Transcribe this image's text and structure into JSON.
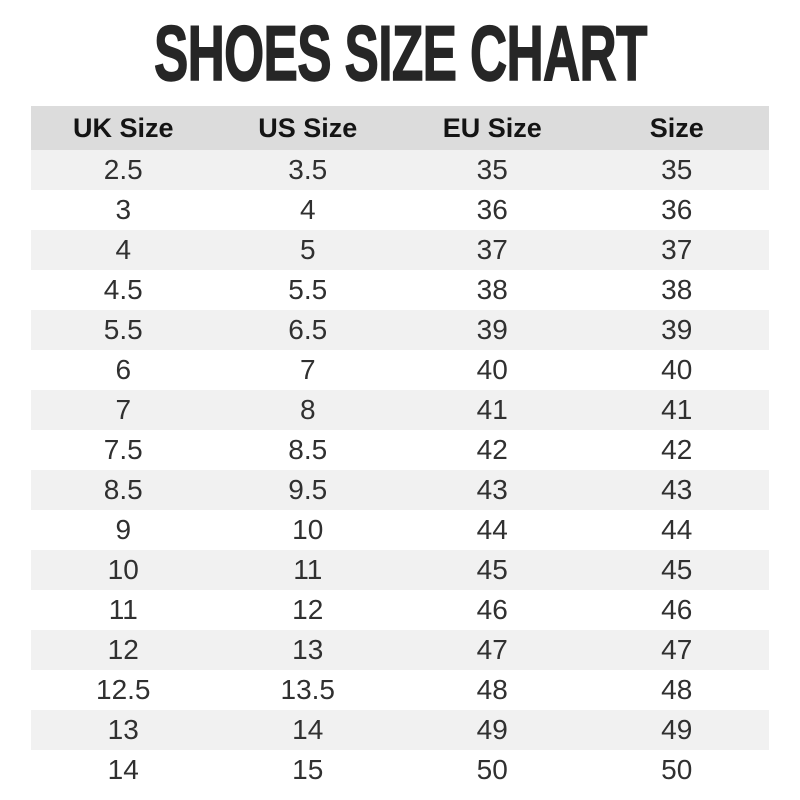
{
  "chart_data": {
    "type": "table",
    "title": "SHOES SIZE CHART",
    "columns": [
      "UK Size",
      "US Size",
      "EU Size",
      "Size"
    ],
    "rows": [
      [
        "2.5",
        "3.5",
        "35",
        "35"
      ],
      [
        "3",
        "4",
        "36",
        "36"
      ],
      [
        "4",
        "5",
        "37",
        "37"
      ],
      [
        "4.5",
        "5.5",
        "38",
        "38"
      ],
      [
        "5.5",
        "6.5",
        "39",
        "39"
      ],
      [
        "6",
        "7",
        "40",
        "40"
      ],
      [
        "7",
        "8",
        "41",
        "41"
      ],
      [
        "7.5",
        "8.5",
        "42",
        "42"
      ],
      [
        "8.5",
        "9.5",
        "43",
        "43"
      ],
      [
        "9",
        "10",
        "44",
        "44"
      ],
      [
        "10",
        "11",
        "45",
        "45"
      ],
      [
        "11",
        "12",
        "46",
        "46"
      ],
      [
        "12",
        "13",
        "47",
        "47"
      ],
      [
        "12.5",
        "13.5",
        "48",
        "48"
      ],
      [
        "13",
        "14",
        "49",
        "49"
      ],
      [
        "14",
        "15",
        "50",
        "50"
      ]
    ],
    "layout": {
      "striped_rows": true,
      "grid": false
    }
  },
  "colors": {
    "header_bg": "#dcdcdc",
    "row_alt_bg": "#f1f1f1",
    "row_bg": "#ffffff",
    "title_text": "#262626",
    "cell_text": "#303030"
  }
}
